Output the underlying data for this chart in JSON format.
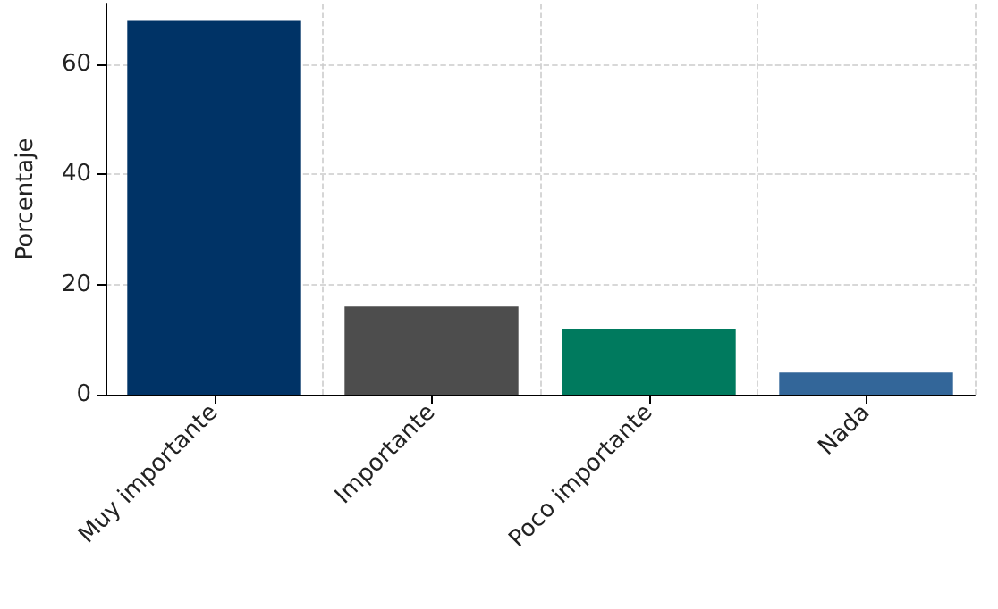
{
  "chart_data": {
    "type": "bar",
    "ylabel": "Porcentaje",
    "categories": [
      "Muy importante",
      "Importante",
      "Poco importante",
      "Nada"
    ],
    "values": [
      68,
      16,
      12,
      4
    ],
    "colors": [
      "#003366",
      "#4d4d4d",
      "#007a5e",
      "#336699"
    ],
    "ylim": [
      0,
      71
    ],
    "yticks": [
      0,
      20,
      40,
      60
    ],
    "grid": true
  }
}
